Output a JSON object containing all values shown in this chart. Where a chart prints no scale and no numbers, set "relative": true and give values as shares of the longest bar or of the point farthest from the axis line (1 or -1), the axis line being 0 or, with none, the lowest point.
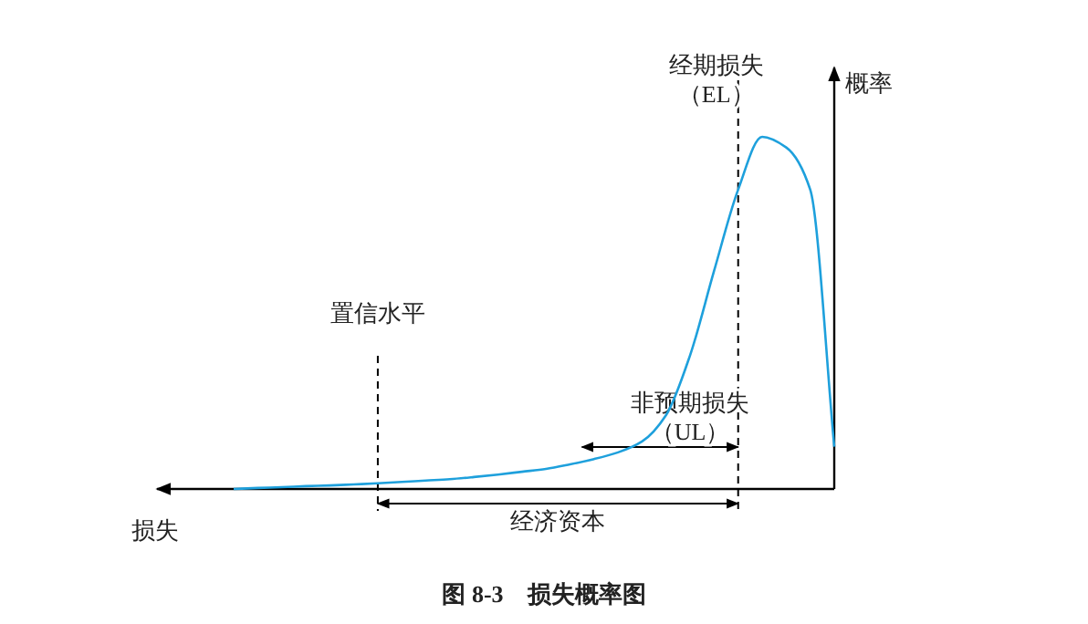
{
  "chart_data": {
    "type": "line",
    "relative": true,
    "title": "图 8-3　损失概率图",
    "xlabel": "损失",
    "ylabel": "概率",
    "categories": [
      null,
      null,
      null,
      null,
      null,
      null,
      null,
      null,
      null,
      null,
      null,
      null,
      null,
      null,
      null,
      null,
      null,
      null,
      null,
      null,
      null,
      null,
      null,
      null,
      null,
      null
    ],
    "series": [
      {
        "color": "#1ea0dc",
        "values": [
          0,
          0.003,
          0.005,
          0.008,
          0.01,
          0.013,
          0.016,
          0.02,
          0.024,
          0.028,
          0.034,
          0.041,
          0.049,
          0.057,
          0.07,
          0.085,
          0.104,
          0.135,
          0.21,
          0.38,
          0.62,
          0.85,
          1,
          0.97,
          0.85,
          0.12
        ]
      }
    ],
    "annotations": [
      "置信水平",
      "经期损失（EL）",
      "经济资本",
      "非预期损失（UL）"
    ],
    "grid": false,
    "marker": "none",
    "line_style": "solid"
  }
}
